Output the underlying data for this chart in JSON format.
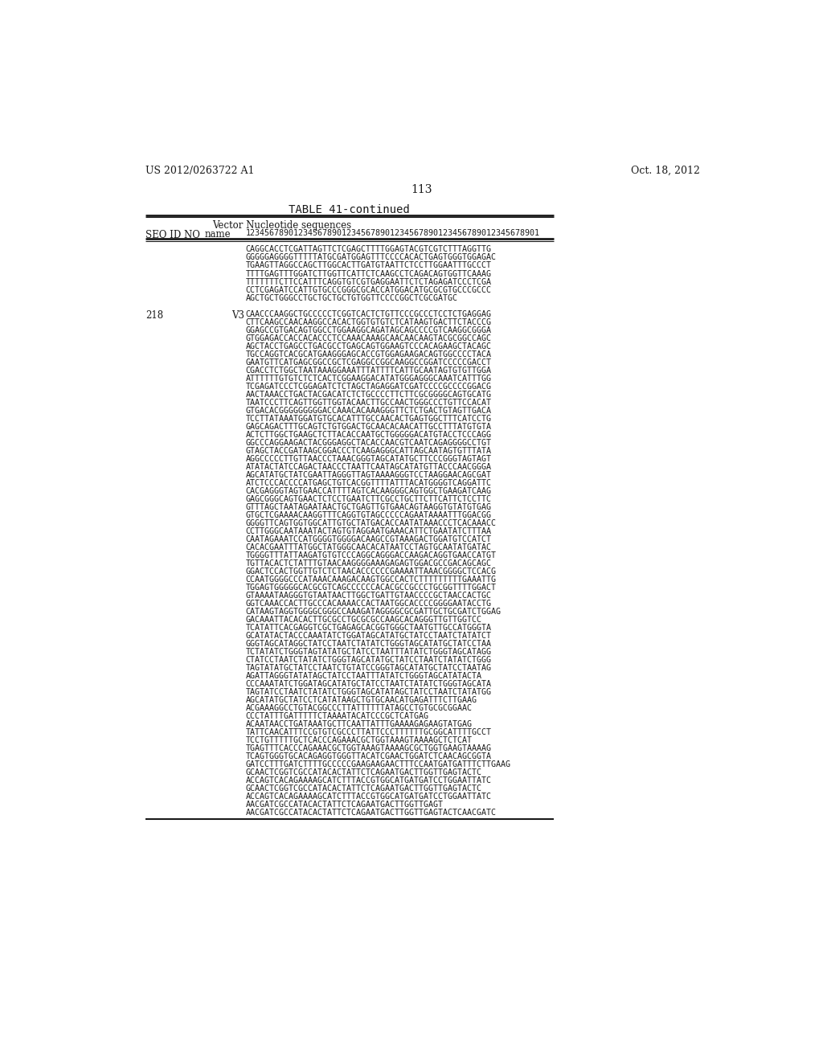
{
  "background_color": "#ffffff",
  "header_left": "US 2012/0263722 A1",
  "header_right": "Oct. 18, 2012",
  "page_number": "113",
  "table_title": "TABLE 41-continued",
  "col_header_line1": "        Vector Nucleotide sequences",
  "col_header_line2": "SEQ ID NO name  1234567890123456789012345678901234567890123456789012345678901",
  "seq_block1": [
    "CAGGCACCTCGATTAGTTCTCGAGCTTTTGGAGTACGTCGTCTTTAGGTTG",
    "GGGGGAGGGGTTTTTATGCGATGGAGTTTCCCCACACTGAGTGGGTGGAGAC",
    "TGAAGTTAGGCCAGCTTGGCACTTGATGTAATTCTCCTTGGAATTTGCCCT",
    "TTTTGAGTTTGGATCTTGGTTCATTCTCAAGCCTCAGACAGTGGTTCAAAG",
    "TTTTTTTCTTCCATTTCAGGTGTCGTGAGGAATTCTCTAGAGATCCCTCGA",
    "CCTCGAGATCCATTGTGCCCGGGCGCACCATGGACATGCGCGTGCCCGCCC",
    "AGCTGCTGGGCCTGCTGCTGCTGTGGTTCCCCGGCTCGCGATGC"
  ],
  "seq_id_218": "218",
  "vec_218": "V3",
  "seq_block2": [
    "CAACCCAAGGCTGCCCCCTCGGTCACTCTGTTCCCGCCCTCCTCTGAGGAG",
    "CTTCAAGCCAACAAGGCCACACTGGTGTGTCTCATAAGTGACTTCTACCCG",
    "GGAGCCGTGACAGTGGCCTGGAAGGCAGATAGCAGCCCCGTCAAGGCGGGA",
    "GTGGAGACCACCACACCCTCCAAACAAAGCAACAACAAGTACGCGGCCAGC",
    "AGCTACCTGAGCCTGACGCCTGAGCAGTGGAAGTCCCACAGAAGCTACAGC",
    "TGCCAGGTCACGCATGAAGGGAGCACCGTGGAGAAGACAGTGGCCCCTACA",
    "GAATGTTCATGAGCGGCCGCTCGAGGCCGGCAAGGCCGGATCCCCCGACCT",
    "CGACCTCTGGCTAATAAAGGAAATTTATTTTCATTGCAATAGTGTGTTGGA",
    "ATTTTTTGTGTCTCTCACTCGGAAGGACATATGGGAGGGCAAATCATTTGG",
    "TCGAGATCCCTCGGAGATCTCTAGCTAGAGGATCGATCCCCGCCCCGGACG",
    "AACTAAACCTGACTACGACATCTCTGCCCCTTCTTCGCGGGGCAGTGCATG",
    "TAATCCCTTCAGTTGGTTGGTACAACTTGCCAACTGGGCCCTGTTCCACAT",
    "GTGACACGGGGGGGGGACCAAACACAAAGGGTTCTCTGACTGTAGTTGACA",
    "TCCTTATAAATGGATGTGCACATTTGCCAACACTGAGTGGCTTTCATCCTG",
    "GAGCAGACTTTGCAGTCTGTGGACTGCAACACAACATTGCCTTTATGTGTA",
    "ACTCTTGGCTGAAGCTCTTACACCAATGCTGGGGGACATGTACCTCCCAGG",
    "GGCCCAGGAAGACTACGGGAGGCTACACCAACGTCAATCAGAGGGGCCTGT",
    "GTAGCTACCGATAAGCGGACCCTCAAGAGGGCATTAGCAATAGTGTTTATA",
    "AGGCCCCCTTGTTAACCCTAAACGGGTAGCATATGCTTCCCGGGTAGTAGT",
    "ATATACTATCCAGACTAACCCTAATTCAATAGCATATGTTACCCAACGGGA",
    "AGCATATGCTATCGAATTAGGGTTAGTAAAAGGGTCCTAAGGAACAGCGAT",
    "ATCTCCCACCCCATGAGCTGTCACGGTTTTATTTACATGGGGTCAGGATTC",
    "CACGAGGGTAGTGAACCATTTTAGTCACAAGGGCAGTGGCTGAAGATCAAG",
    "GAGCGGGCAGTGAACTCTCCTGAATCTTCGCCTGCTTCTTCATTCTCCTTC",
    "GTTTAGCTAATAGAATAACTGCTGAGTTGTGAACAGTAAGGTGTATGTGAG",
    "GTGCTCGAAAACAAGGTTTCAGGTGTAGCCCCCAGAATAAAATTTGGACGG",
    "GGGGTTCAGTGGTGGCATTGTGCTATGACACCAATATAAACCCTCACAAACC",
    "CCTTGGGCAATAAATACTAGTGTAGGAATGAAACATTCTGAATATCTTTAA",
    "CAATAGAAATCCATGGGGTGGGGACAAGCCGTAAAGACTGGATGTCCATCT",
    "CACACGAATTTATGGCTATGGGCAACACATAATCCTAGTGCAATATGATAC",
    "TGGGGTTTATTAAGATGTGTCCCAGGCAGGGACCAAGACAGGTGAACCATGT",
    "TGTTACACTCTATTTGTAACAAGGGGAAAGAGAGTGGACGCCGACAGCAGC",
    "GGACTCCACTGGTTGTCTCTAACACCCCCCGAAAATTAAACGGGGCTCCACG",
    "CCAATGGGGCCCATAAACAAAGACAAGTGGCCACTCTTTTTTTTTGAAATTG",
    "TGGAGTGGGGGCACGCGTCAGCCCCCCACACGCCGCCCTGCGGTTTTGGACT",
    "GTAAAATAAGGGTGTAATAACTTGGCTGATTGTAACCCCGCTAACCACTGC",
    "GGTCAAACCACTTGCCCACAAAACCACTAATGGCACCCCGGGGAATACCTG",
    "CATAAGTAGGTGGGGCGGGCCAAAGATAGGGGCGCGATTGCTGCGATCTGGAG",
    "GACAAATTACACACTTGCGCCTGCGCGCCAAGCACAGGGTTGTTGGTCC",
    "TCATATTCACGAGGTCGCTGAGAGCACGGTGGGCTAATGTTGCCATGGGTA",
    "GCATATACTACCCAAATATCTGGATAGCATATGCTATCCTAATCTATATCT",
    "GGGTAGCATAGGCTATCCTAATCTATATCTGGGTAGCATATGCTATCCTAA",
    "TCTATATCTGGGTAGTATATGCTATCCTAATTTATATCTGGGTAGCATAGG",
    "CTATCCTAATCTATATCTGGGTAGCATATGCTATCCTAATCTATATCTGGG",
    "TAGTATATGCTATCCTAATCTGTATCCGGGTAGCATATGCTATCCTAATAG",
    "AGATTAGGGTATATAGCTATCCTAATTTATATCTGGGTAGCATATACTA",
    "CCCAAATATCTGGATAGCATATGCTATCCTAATCTATATCTGGGTAGCATA",
    "TAGTATCCTAATCTATATCTGGGTAGCATATAGCTATCCTAATCTATATGG",
    "AGCATATGCTATCCTCATATAAGCTGTGCAACATGAGATTTCTTGAAG",
    "ACGAAAGGCCTGTACGGCCCTTATTTTTTATAGCCTGTGCGCGGAAC",
    "CCCTATTTGATTTTTCTAAAATACATCCCGCTCATGAG",
    "ACAATAACCTGATAAATGCTTCAATTATTTGAAAAGAGAAGTATGAG",
    "TATTCAACATTTCCGTGTCGCCCTTATTCCCTTTTTTGCGGCATTTTGCCT",
    "TCCTGTTTTTGCTCACCCAGAAACGCTGGTAAAGTAAAAGCTCTCAT",
    "TGAGTTTCACCCAGAAACGCTGGTAAAGTAAAAGCGCTGGTGAAGTAAAAG",
    "TCAGTGGGTGCACAGAGGTGGGTTACATCGAACTGGATCTCAACAGCGGTA",
    "GATCCTTTGATCTTTTGCCCCCGAAGAAGAACTTTCCAATGATGATTTCTTGAAG",
    "GCAACTCGGTCGCCATACACTATTCTCAGAATGACTTGGTTGAGTACTC",
    "ACCAGTCACAGAAAAGCATCTTTACCGTGGCATGATGATCCTGGAATTATC",
    "GCAACTCGGTCGCCATACACTATTCTCAGAATGACTTGGTTGAGTACTC",
    "ACCAGTCACAGAAAAGCATCTTTACCGTGGCATGATGATCCTGGAATTATC",
    "AACGATCGCCATACACTATTCTCAGAATGACTTGGTTGAGT",
    "AACGATCGCCATACACTATTCTCAGAATGACTTGGTTGAGTACTCAACGATC"
  ]
}
